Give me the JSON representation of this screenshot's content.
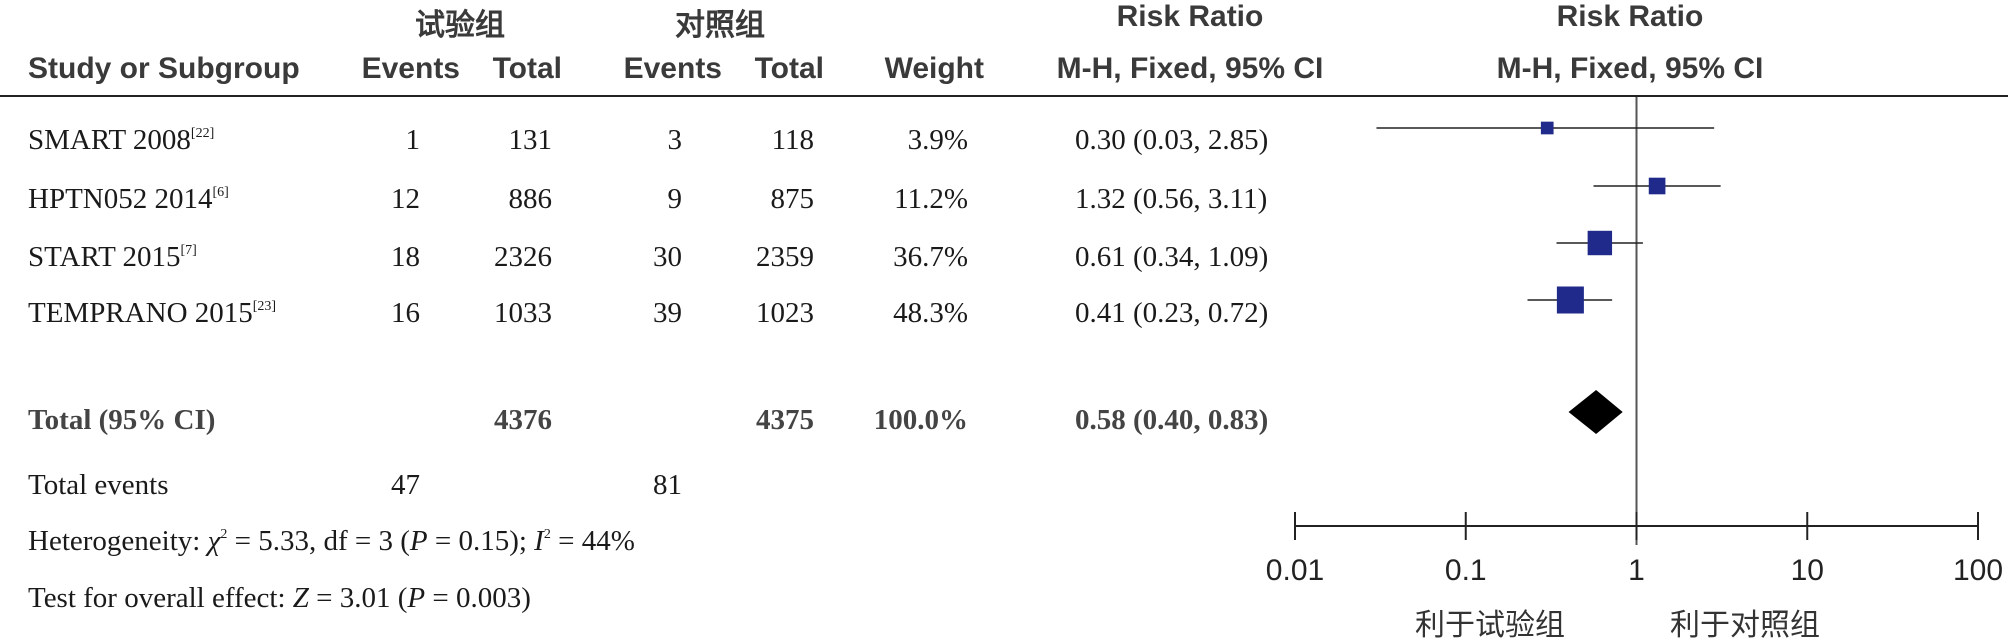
{
  "header": {
    "group_exp": "试验组",
    "group_ctrl": "对照组",
    "study_col": "Study or Subgroup",
    "events": "Events",
    "total": "Total",
    "weight": "Weight",
    "rr_title_left": "Risk Ratio",
    "rr_method_left": "M-H, Fixed, 95% CI",
    "rr_title_right": "Risk Ratio",
    "rr_method_right": "M-H, Fixed, 95% CI"
  },
  "studies": [
    {
      "name": "SMART 2008",
      "ref": "[22]",
      "exp_events": "1",
      "exp_total": "131",
      "ctrl_events": "3",
      "ctrl_total": "118",
      "weight": "3.9%",
      "ci_text": "0.30 (0.03, 2.85)"
    },
    {
      "name": "HPTN052 2014",
      "ref": "[6]",
      "exp_events": "12",
      "exp_total": "886",
      "ctrl_events": "9",
      "ctrl_total": "875",
      "weight": "11.2%",
      "ci_text": "1.32 (0.56, 3.11)"
    },
    {
      "name": "START 2015",
      "ref": "[7]",
      "exp_events": "18",
      "exp_total": "2326",
      "ctrl_events": "30",
      "ctrl_total": "2359",
      "weight": "36.7%",
      "ci_text": "0.61 (0.34, 1.09)"
    },
    {
      "name": "TEMPRANO 2015",
      "ref": "[23]",
      "exp_events": "16",
      "exp_total": "1033",
      "ctrl_events": "39",
      "ctrl_total": "1023",
      "weight": "48.3%",
      "ci_text": "0.41 (0.23, 0.72)"
    }
  ],
  "total_row": {
    "label": "Total (95% CI)",
    "exp_total": "4376",
    "ctrl_total": "4375",
    "weight": "100.0%",
    "ci_text": "0.58 (0.40, 0.83)"
  },
  "events_row": {
    "label": "Total events",
    "exp_events": "47",
    "ctrl_events": "81"
  },
  "heterogeneity": {
    "prefix": "Heterogeneity: ",
    "chi": "χ",
    "chi_sup": "2",
    "chi_rest": " = 5.33, df = 3 (",
    "p": "P",
    "p_rest": " = 0.15); ",
    "i": "I",
    "i_sup": "2",
    "i_rest": " = 44%"
  },
  "overall_effect": {
    "prefix": "Test for overall effect: ",
    "z": "Z",
    "z_rest": " = 3.01 (",
    "p": "P",
    "p_rest": " = 0.003)"
  },
  "axis": {
    "favours_left": "利于试验组",
    "favours_right": "利于对照组"
  },
  "colors": {
    "study_marker": "#1f2a8a",
    "diamond": "#000000",
    "line": "#222222",
    "ref_line": "#555555"
  },
  "chart_data": {
    "type": "forest",
    "scale": "log",
    "xlim": [
      0.01,
      100
    ],
    "ticks": [
      "0.01",
      "0.1",
      "1",
      "10",
      "100"
    ],
    "tick_values": [
      0.01,
      0.1,
      1,
      10,
      100
    ],
    "reference_value": 1,
    "points": [
      {
        "label": "SMART 2008",
        "rr": 0.3,
        "lo": 0.03,
        "hi": 2.85,
        "weight": 3.9
      },
      {
        "label": "HPTN052 2014",
        "rr": 1.32,
        "lo": 0.56,
        "hi": 3.11,
        "weight": 11.2
      },
      {
        "label": "START 2015",
        "rr": 0.61,
        "lo": 0.34,
        "hi": 1.09,
        "weight": 36.7
      },
      {
        "label": "TEMPRANO 2015",
        "rr": 0.41,
        "lo": 0.23,
        "hi": 0.72,
        "weight": 48.3
      }
    ],
    "pooled": {
      "label": "Total (95% CI)",
      "rr": 0.58,
      "lo": 0.4,
      "hi": 0.83
    }
  }
}
